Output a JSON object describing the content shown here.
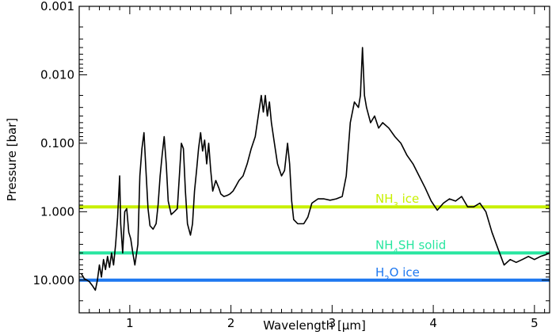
{
  "chart_data": {
    "type": "line",
    "title": "",
    "xlabel": "Wavelength [μm]",
    "ylabel": "Pressure [bar]",
    "xlim": [
      0.5,
      5.15
    ],
    "ylim_log": [
      30.0,
      0.001
    ],
    "y_scale": "log",
    "y_inverted": true,
    "x_ticks": [
      1,
      2,
      3,
      4,
      5
    ],
    "x_tick_labels": [
      "1",
      "2",
      "3",
      "4",
      "5"
    ],
    "y_ticks": [
      0.001,
      0.01,
      0.1,
      1.0,
      10.0
    ],
    "y_tick_labels": [
      "0.001",
      "0.010",
      "0.100",
      "1.000",
      "10.000"
    ],
    "colors": {
      "series": "#000000",
      "nh3": "#c8f000",
      "nh4sh": "#28e6a0",
      "h2o": "#1e78f0"
    },
    "cloud_layers": [
      {
        "key": "nh3",
        "label_main": "NH",
        "label_sub": "3",
        "label_rest": " ice",
        "pressure": 0.85
      },
      {
        "key": "nh4sh",
        "label_main": "NH",
        "label_sub": "4",
        "label_rest": "SH solid",
        "pressure": 4.0
      },
      {
        "key": "h2o",
        "label_main": "H",
        "label_sub": "2",
        "label_rest": "O ice",
        "pressure": 10.0
      }
    ],
    "series": [
      {
        "values": [
          [
            0.52,
            8.0
          ],
          [
            0.55,
            9.5
          ],
          [
            0.6,
            10.5
          ],
          [
            0.63,
            12.0
          ],
          [
            0.66,
            14.0
          ],
          [
            0.68,
            10.0
          ],
          [
            0.7,
            6.0
          ],
          [
            0.72,
            9.0
          ],
          [
            0.74,
            5.0
          ],
          [
            0.76,
            7.0
          ],
          [
            0.78,
            4.5
          ],
          [
            0.8,
            6.5
          ],
          [
            0.82,
            4.0
          ],
          [
            0.84,
            6.0
          ],
          [
            0.86,
            3.0
          ],
          [
            0.88,
            1.2
          ],
          [
            0.9,
            0.3
          ],
          [
            0.91,
            1.5
          ],
          [
            0.93,
            4.0
          ],
          [
            0.95,
            1.0
          ],
          [
            0.97,
            0.9
          ],
          [
            0.99,
            2.0
          ],
          [
            1.01,
            2.5
          ],
          [
            1.03,
            4.0
          ],
          [
            1.05,
            6.0
          ],
          [
            1.08,
            3.0
          ],
          [
            1.1,
            0.3
          ],
          [
            1.12,
            0.12
          ],
          [
            1.14,
            0.07
          ],
          [
            1.16,
            0.25
          ],
          [
            1.18,
            0.9
          ],
          [
            1.2,
            1.6
          ],
          [
            1.23,
            1.8
          ],
          [
            1.26,
            1.5
          ],
          [
            1.28,
            0.8
          ],
          [
            1.3,
            0.3
          ],
          [
            1.32,
            0.15
          ],
          [
            1.34,
            0.08
          ],
          [
            1.36,
            0.2
          ],
          [
            1.38,
            0.7
          ],
          [
            1.41,
            1.1
          ],
          [
            1.44,
            1.0
          ],
          [
            1.47,
            0.9
          ],
          [
            1.49,
            0.3
          ],
          [
            1.51,
            0.1
          ],
          [
            1.53,
            0.12
          ],
          [
            1.55,
            0.5
          ],
          [
            1.57,
            1.5
          ],
          [
            1.6,
            2.2
          ],
          [
            1.62,
            1.5
          ],
          [
            1.64,
            0.5
          ],
          [
            1.66,
            0.25
          ],
          [
            1.68,
            0.12
          ],
          [
            1.7,
            0.07
          ],
          [
            1.72,
            0.13
          ],
          [
            1.74,
            0.09
          ],
          [
            1.76,
            0.2
          ],
          [
            1.78,
            0.1
          ],
          [
            1.8,
            0.25
          ],
          [
            1.82,
            0.5
          ],
          [
            1.85,
            0.35
          ],
          [
            1.88,
            0.45
          ],
          [
            1.9,
            0.55
          ],
          [
            1.93,
            0.6
          ],
          [
            1.96,
            0.58
          ],
          [
            1.99,
            0.55
          ],
          [
            2.02,
            0.5
          ],
          [
            2.05,
            0.42
          ],
          [
            2.08,
            0.35
          ],
          [
            2.12,
            0.3
          ],
          [
            2.16,
            0.2
          ],
          [
            2.2,
            0.12
          ],
          [
            2.24,
            0.08
          ],
          [
            2.27,
            0.04
          ],
          [
            2.3,
            0.02
          ],
          [
            2.32,
            0.035
          ],
          [
            2.34,
            0.02
          ],
          [
            2.36,
            0.04
          ],
          [
            2.38,
            0.025
          ],
          [
            2.4,
            0.05
          ],
          [
            2.43,
            0.1
          ],
          [
            2.46,
            0.2
          ],
          [
            2.5,
            0.3
          ],
          [
            2.53,
            0.25
          ],
          [
            2.56,
            0.1
          ],
          [
            2.58,
            0.2
          ],
          [
            2.6,
            0.7
          ],
          [
            2.62,
            1.3
          ],
          [
            2.66,
            1.5
          ],
          [
            2.72,
            1.5
          ],
          [
            2.76,
            1.2
          ],
          [
            2.8,
            0.75
          ],
          [
            2.86,
            0.65
          ],
          [
            2.92,
            0.65
          ],
          [
            2.98,
            0.68
          ],
          [
            3.04,
            0.65
          ],
          [
            3.1,
            0.6
          ],
          [
            3.14,
            0.3
          ],
          [
            3.18,
            0.05
          ],
          [
            3.22,
            0.025
          ],
          [
            3.26,
            0.03
          ],
          [
            3.28,
            0.02
          ],
          [
            3.3,
            0.004
          ],
          [
            3.32,
            0.02
          ],
          [
            3.34,
            0.03
          ],
          [
            3.38,
            0.05
          ],
          [
            3.42,
            0.04
          ],
          [
            3.46,
            0.06
          ],
          [
            3.5,
            0.05
          ],
          [
            3.56,
            0.06
          ],
          [
            3.62,
            0.08
          ],
          [
            3.68,
            0.1
          ],
          [
            3.74,
            0.15
          ],
          [
            3.8,
            0.2
          ],
          [
            3.86,
            0.3
          ],
          [
            3.92,
            0.45
          ],
          [
            3.98,
            0.7
          ],
          [
            4.04,
            0.95
          ],
          [
            4.1,
            0.75
          ],
          [
            4.16,
            0.65
          ],
          [
            4.22,
            0.7
          ],
          [
            4.28,
            0.6
          ],
          [
            4.34,
            0.85
          ],
          [
            4.4,
            0.85
          ],
          [
            4.46,
            0.75
          ],
          [
            4.52,
            1.0
          ],
          [
            4.58,
            2.0
          ],
          [
            4.64,
            3.5
          ],
          [
            4.7,
            6.0
          ],
          [
            4.76,
            5.0
          ],
          [
            4.82,
            5.5
          ],
          [
            4.88,
            5.0
          ],
          [
            4.94,
            4.5
          ],
          [
            5.0,
            5.0
          ],
          [
            5.06,
            4.5
          ],
          [
            5.12,
            4.2
          ],
          [
            5.15,
            4.0
          ]
        ]
      }
    ]
  }
}
